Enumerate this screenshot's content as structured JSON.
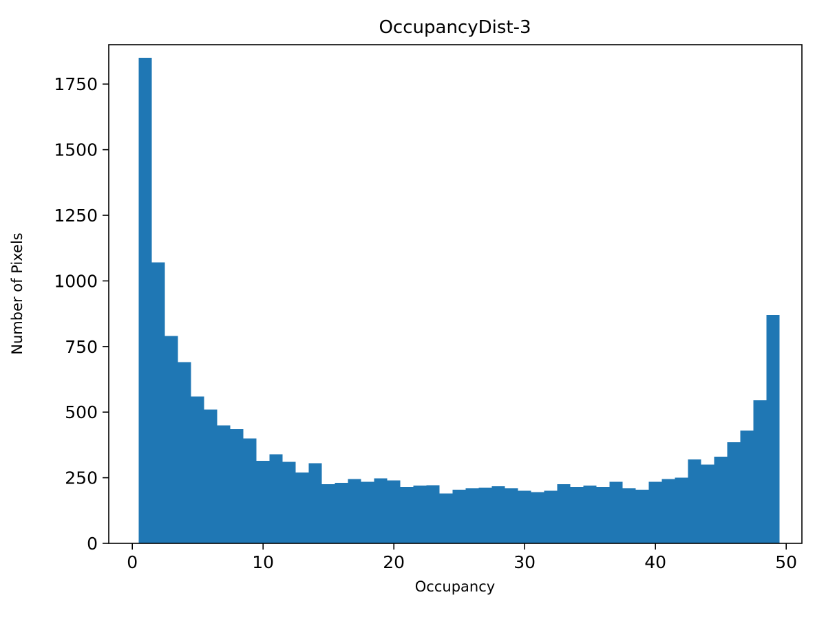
{
  "chart": {
    "title": "OccupancyDist-3",
    "xlabel": "Occupancy",
    "ylabel": "Number of Pixels"
  },
  "chart_data": {
    "type": "bar",
    "subtype": "histogram",
    "title": "OccupancyDist-3",
    "xlabel": "Occupancy",
    "ylabel": "Number of Pixels",
    "bin_start": 0.5,
    "bin_width": 1,
    "values": [
      1850,
      1070,
      790,
      690,
      560,
      510,
      450,
      435,
      400,
      315,
      340,
      310,
      270,
      305,
      225,
      230,
      245,
      235,
      248,
      240,
      215,
      220,
      222,
      190,
      205,
      210,
      212,
      218,
      210,
      200,
      195,
      200,
      225,
      215,
      220,
      215,
      235,
      210,
      205,
      235,
      245,
      250,
      320,
      300,
      330,
      385,
      430,
      545,
      870
    ],
    "xlim": [
      -1.8,
      51.2
    ],
    "ylim": [
      0,
      1900
    ],
    "xticks": [
      0,
      10,
      20,
      30,
      40,
      50
    ],
    "yticks": [
      0,
      250,
      500,
      750,
      1000,
      1250,
      1500,
      1750
    ],
    "bar_color": "#1f77b4",
    "axis_color": "#000000",
    "grid": false,
    "legend": "none"
  }
}
